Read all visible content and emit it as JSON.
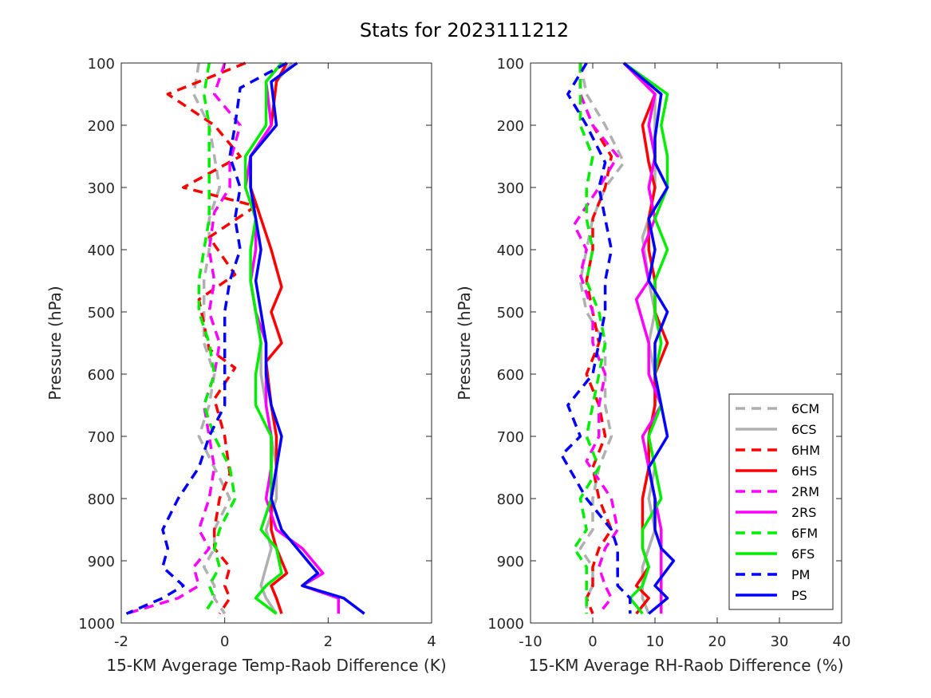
{
  "title": "Stats for 2023111212",
  "colors": {
    "gray": "#b0b0b0",
    "red": "#ff0000",
    "magenta": "#ff00ff",
    "green": "#00ee00",
    "blue": "#0000ff",
    "axis": "#262626"
  },
  "chart_data": [
    {
      "type": "line",
      "xlabel": "15-KM Avgerage Temp-Raob Difference (K)",
      "ylabel": "Pressure (hPa)",
      "xlim": [
        -2,
        4
      ],
      "ylim": [
        100,
        1000
      ],
      "y_reversed": true,
      "xticks": [
        "-2",
        "0",
        "2",
        "4"
      ],
      "yticks": [
        "100",
        "200",
        "300",
        "400",
        "500",
        "600",
        "700",
        "800",
        "900",
        "1000"
      ],
      "grid": false,
      "series": [
        {
          "name": "6CM",
          "color": "#b0b0b0",
          "dash": true,
          "x": [
            -0.5,
            -0.6,
            -0.3,
            -0.2,
            -0.1,
            -0.3,
            -0.3,
            -0.4,
            -0.4,
            -0.4,
            -0.2,
            -0.3,
            -0.5,
            -0.2,
            0.1,
            -0.2,
            -0.2,
            -0.4,
            -0.2,
            -0.2,
            0.0
          ],
          "y": [
            100,
            150,
            200,
            250,
            300,
            350,
            400,
            450,
            500,
            550,
            600,
            650,
            700,
            750,
            800,
            850,
            880,
            910,
            940,
            960,
            985
          ]
        },
        {
          "name": "6CS",
          "color": "#b0b0b0",
          "dash": false,
          "x": [
            1.3,
            1.0,
            0.9,
            0.5,
            0.5,
            0.6,
            0.6,
            0.5,
            0.6,
            0.7,
            0.7,
            0.8,
            0.9,
            1.0,
            1.0,
            0.8,
            0.9,
            0.8,
            0.7,
            0.8,
            1.0
          ],
          "y": [
            100,
            130,
            200,
            250,
            300,
            350,
            400,
            450,
            500,
            550,
            600,
            650,
            700,
            750,
            800,
            850,
            880,
            910,
            940,
            960,
            985
          ]
        },
        {
          "name": "6HM",
          "color": "#ff0000",
          "dash": true,
          "x": [
            0.4,
            -1.1,
            -0.2,
            0.3,
            -0.8,
            0.6,
            -0.3,
            0.2,
            -0.5,
            -0.3,
            0.2,
            -0.2,
            0.0,
            0.1,
            -0.1,
            -0.2,
            -0.2,
            0.1,
            0.0,
            0.1,
            -0.1
          ],
          "y": [
            100,
            150,
            200,
            250,
            300,
            330,
            380,
            440,
            480,
            560,
            590,
            640,
            700,
            760,
            800,
            850,
            880,
            910,
            940,
            960,
            985
          ]
        },
        {
          "name": "6HS",
          "color": "#ff0000",
          "dash": false,
          "x": [
            1.2,
            1.0,
            0.9,
            0.5,
            0.5,
            0.7,
            0.9,
            1.1,
            0.9,
            1.1,
            0.8,
            0.9,
            1.0,
            1.0,
            0.9,
            0.9,
            1.0,
            1.2,
            0.9,
            1.0,
            1.1
          ],
          "y": [
            100,
            130,
            200,
            250,
            300,
            350,
            400,
            460,
            500,
            550,
            580,
            650,
            700,
            750,
            800,
            850,
            880,
            920,
            940,
            960,
            985
          ]
        },
        {
          "name": "2RM",
          "color": "#ff00ff",
          "dash": true,
          "x": [
            0.0,
            -0.2,
            0.3,
            0.1,
            0.1,
            -0.2,
            -0.3,
            -0.2,
            -0.3,
            -0.1,
            -0.2,
            -0.4,
            -0.3,
            -0.2,
            -0.3,
            -0.5,
            -0.3,
            -0.6,
            -0.5,
            -0.9,
            -1.9
          ],
          "y": [
            100,
            150,
            200,
            260,
            300,
            340,
            400,
            450,
            500,
            550,
            600,
            650,
            700,
            750,
            800,
            850,
            880,
            910,
            940,
            960,
            985
          ]
        },
        {
          "name": "2RS",
          "color": "#ff00ff",
          "dash": false,
          "x": [
            1.1,
            0.8,
            0.9,
            0.5,
            0.4,
            0.6,
            0.6,
            0.5,
            0.6,
            0.8,
            0.8,
            0.8,
            0.9,
            0.9,
            0.8,
            1.0,
            1.5,
            1.9,
            1.5,
            2.2,
            2.2
          ],
          "y": [
            100,
            130,
            200,
            250,
            300,
            350,
            400,
            450,
            500,
            550,
            600,
            650,
            700,
            750,
            800,
            850,
            880,
            920,
            940,
            960,
            985
          ]
        },
        {
          "name": "6FM",
          "color": "#00ee00",
          "dash": true,
          "x": [
            -0.3,
            -0.4,
            -0.3,
            -0.3,
            -0.3,
            -0.3,
            -0.4,
            -0.5,
            -0.5,
            -0.3,
            -0.2,
            -0.4,
            -0.2,
            0.1,
            0.2,
            -0.1,
            -0.2,
            -0.1,
            -0.3,
            -0.2,
            -0.4
          ],
          "y": [
            100,
            150,
            200,
            250,
            300,
            350,
            400,
            450,
            500,
            550,
            600,
            650,
            700,
            750,
            800,
            850,
            880,
            910,
            940,
            960,
            985
          ]
        },
        {
          "name": "6FS",
          "color": "#00ee00",
          "dash": false,
          "x": [
            1.1,
            0.8,
            0.8,
            0.4,
            0.4,
            0.6,
            0.5,
            0.5,
            0.6,
            0.7,
            0.6,
            0.6,
            0.9,
            0.9,
            0.9,
            0.7,
            1.0,
            1.1,
            0.8,
            0.6,
            1.0
          ],
          "y": [
            100,
            130,
            200,
            250,
            300,
            350,
            400,
            450,
            500,
            550,
            600,
            650,
            700,
            750,
            800,
            850,
            880,
            920,
            940,
            960,
            985
          ]
        },
        {
          "name": "PM",
          "color": "#0000ff",
          "dash": true,
          "x": [
            1.2,
            0.3,
            0.2,
            0.1,
            0.3,
            0.2,
            0.3,
            0.1,
            0.0,
            0.0,
            0.0,
            0.0,
            -0.3,
            -0.5,
            -0.9,
            -1.2,
            -1.1,
            -1.2,
            -0.8,
            -1.2,
            -1.9
          ],
          "y": [
            100,
            140,
            200,
            250,
            300,
            350,
            400,
            450,
            500,
            550,
            600,
            650,
            700,
            750,
            800,
            850,
            880,
            910,
            940,
            960,
            985
          ]
        },
        {
          "name": "PS",
          "color": "#0000ff",
          "dash": false,
          "x": [
            1.4,
            0.9,
            1.0,
            0.5,
            0.5,
            0.6,
            0.7,
            0.6,
            0.7,
            0.8,
            0.8,
            0.9,
            1.1,
            1.0,
            0.9,
            1.1,
            1.4,
            1.8,
            1.5,
            2.3,
            2.7
          ],
          "y": [
            100,
            130,
            200,
            250,
            300,
            350,
            400,
            450,
            500,
            550,
            600,
            650,
            700,
            750,
            800,
            850,
            880,
            920,
            940,
            960,
            985
          ]
        }
      ]
    },
    {
      "type": "line",
      "xlabel": "15-KM Average RH-Raob Difference (%)",
      "ylabel": "Pressure (hPa)",
      "xlim": [
        -10,
        40
      ],
      "ylim": [
        100,
        1000
      ],
      "y_reversed": true,
      "xticks": [
        "-10",
        "0",
        "10",
        "20",
        "30",
        "40"
      ],
      "yticks": [
        "100",
        "200",
        "300",
        "400",
        "500",
        "600",
        "700",
        "800",
        "900",
        "1000"
      ],
      "grid": false,
      "legend": {
        "placement": "bottom-right",
        "entries": [
          "6CM",
          "6CS",
          "6HM",
          "6HS",
          "2RM",
          "2RS",
          "6FM",
          "6FS",
          "PM",
          "PS"
        ]
      },
      "series": [
        {
          "name": "6CM",
          "color": "#b0b0b0",
          "dash": true,
          "x": [
            -2,
            -1,
            2,
            5,
            2,
            0,
            -1,
            -2,
            -1,
            2,
            2,
            2,
            3,
            1,
            0,
            0,
            -2,
            0,
            0,
            -1,
            -1
          ],
          "y": [
            100,
            150,
            200,
            260,
            300,
            350,
            400,
            450,
            500,
            550,
            600,
            650,
            700,
            750,
            800,
            850,
            880,
            910,
            940,
            960,
            985
          ]
        },
        {
          "name": "6CS",
          "color": "#b0b0b0",
          "dash": false,
          "x": [
            5,
            10,
            10,
            10,
            10,
            9,
            8,
            9,
            10,
            9,
            10,
            10,
            9,
            10,
            9,
            10,
            9,
            8,
            8,
            8,
            9
          ],
          "y": [
            100,
            150,
            200,
            250,
            300,
            350,
            380,
            450,
            500,
            550,
            600,
            650,
            700,
            750,
            800,
            850,
            880,
            910,
            940,
            960,
            985
          ]
        },
        {
          "name": "6HM",
          "color": "#ff0000",
          "dash": true,
          "x": [
            -2,
            -2,
            0,
            3,
            2,
            0,
            0,
            -1,
            0,
            1,
            -1,
            1,
            2,
            0,
            1,
            3,
            1,
            0,
            0,
            -1,
            0
          ],
          "y": [
            100,
            150,
            200,
            250,
            300,
            350,
            400,
            450,
            500,
            550,
            600,
            650,
            700,
            750,
            800,
            850,
            880,
            910,
            940,
            960,
            985
          ]
        },
        {
          "name": "6HS",
          "color": "#ff0000",
          "dash": false,
          "x": [
            5,
            10,
            8,
            9,
            10,
            9,
            9,
            10,
            10,
            12,
            10,
            10,
            9,
            9,
            8,
            8,
            8,
            9,
            7,
            9,
            7
          ],
          "y": [
            100,
            150,
            200,
            260,
            300,
            350,
            400,
            450,
            500,
            550,
            600,
            650,
            700,
            750,
            800,
            850,
            880,
            910,
            940,
            960,
            985
          ]
        },
        {
          "name": "2RM",
          "color": "#ff00ff",
          "dash": true,
          "x": [
            -2,
            -2,
            0,
            4,
            1,
            -3,
            -1,
            -2,
            0,
            0,
            2,
            1,
            1,
            -1,
            3,
            4,
            2,
            1,
            2,
            3,
            1
          ],
          "y": [
            100,
            150,
            200,
            250,
            300,
            360,
            400,
            440,
            500,
            550,
            600,
            650,
            700,
            740,
            800,
            850,
            880,
            910,
            940,
            960,
            985
          ]
        },
        {
          "name": "2RS",
          "color": "#ff00ff",
          "dash": false,
          "x": [
            5,
            10,
            9,
            10,
            9,
            10,
            8,
            9,
            7,
            9,
            9,
            11,
            8,
            9,
            10,
            11,
            11,
            11,
            11,
            11,
            11
          ],
          "y": [
            100,
            150,
            200,
            250,
            300,
            350,
            400,
            450,
            480,
            550,
            600,
            650,
            700,
            750,
            800,
            850,
            880,
            910,
            940,
            960,
            985
          ]
        },
        {
          "name": "6FM",
          "color": "#00ee00",
          "dash": true,
          "x": [
            -2,
            -2,
            -2,
            0,
            -1,
            -1,
            0,
            -1,
            1,
            2,
            1,
            0,
            -1,
            1,
            -2,
            -1,
            -3,
            -1,
            -1,
            -1,
            -1
          ],
          "y": [
            100,
            150,
            200,
            250,
            300,
            350,
            400,
            450,
            500,
            550,
            600,
            650,
            700,
            750,
            800,
            850,
            880,
            910,
            940,
            960,
            985
          ]
        },
        {
          "name": "6FS",
          "color": "#00ee00",
          "dash": false,
          "x": [
            5,
            12,
            11,
            12,
            12,
            10,
            12,
            10,
            10,
            11,
            10,
            11,
            9,
            10,
            11,
            8,
            8,
            9,
            8,
            6,
            8
          ],
          "y": [
            100,
            150,
            200,
            250,
            300,
            350,
            400,
            450,
            500,
            550,
            600,
            650,
            700,
            750,
            800,
            850,
            880,
            910,
            940,
            960,
            985
          ]
        },
        {
          "name": "PM",
          "color": "#0000ff",
          "dash": true,
          "x": [
            -1,
            -4,
            -1,
            2,
            1,
            2,
            3,
            2,
            2,
            1,
            0,
            -4,
            -2,
            -5,
            -1,
            3,
            4,
            4,
            4,
            6,
            6
          ],
          "y": [
            100,
            150,
            200,
            260,
            300,
            350,
            400,
            450,
            500,
            550,
            600,
            650,
            700,
            730,
            800,
            850,
            880,
            910,
            940,
            960,
            985
          ]
        },
        {
          "name": "PS",
          "color": "#0000ff",
          "dash": false,
          "x": [
            5,
            11,
            10,
            10,
            12,
            9,
            10,
            9,
            12,
            10,
            10,
            11,
            12,
            9,
            10,
            10,
            11,
            13,
            10,
            12,
            9
          ],
          "y": [
            100,
            150,
            220,
            260,
            300,
            350,
            400,
            450,
            500,
            550,
            600,
            650,
            700,
            750,
            800,
            850,
            880,
            900,
            940,
            960,
            985
          ]
        }
      ]
    }
  ]
}
